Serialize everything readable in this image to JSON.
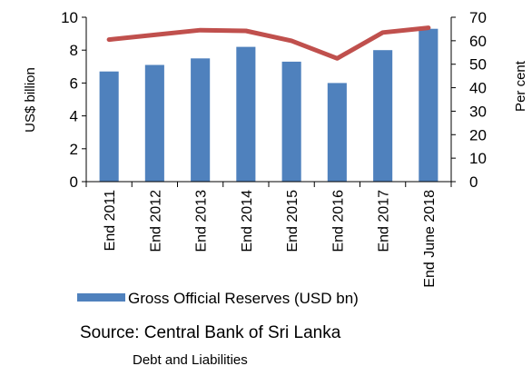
{
  "chart_data": {
    "type": "bar",
    "categories": [
      "End 2011",
      "End 2012",
      "End 2013",
      "End 2014",
      "End 2015",
      "End 2016",
      "End 2017",
      "End June  2018"
    ],
    "series": [
      {
        "name": "Gross Official Reserves (USD bn)",
        "type": "bar",
        "axis": "left",
        "values": [
          6.7,
          7.1,
          7.5,
          8.2,
          7.3,
          6.0,
          8.0,
          9.3
        ]
      },
      {
        "type": "line",
        "axis": "right",
        "values": [
          60.5,
          62.5,
          64.5,
          64.2,
          60.0,
          52.5,
          63.5,
          65.5
        ]
      }
    ],
    "ylabel": "US$ billion",
    "y2label": "Per cent",
    "ylim": [
      0,
      10
    ],
    "y2lim": [
      0,
      70
    ],
    "yticks": [
      0,
      2,
      4,
      6,
      8,
      10
    ],
    "y2ticks": [
      0,
      10,
      20,
      30,
      40,
      50,
      60,
      70
    ],
    "grid": false,
    "legend_position": "bottom-left",
    "colors": {
      "bar": "#4f81bd",
      "line": "#c0504d"
    }
  },
  "source": "Source: Central Bank of Sri Lanka",
  "footer": "Debt and Liabilities"
}
